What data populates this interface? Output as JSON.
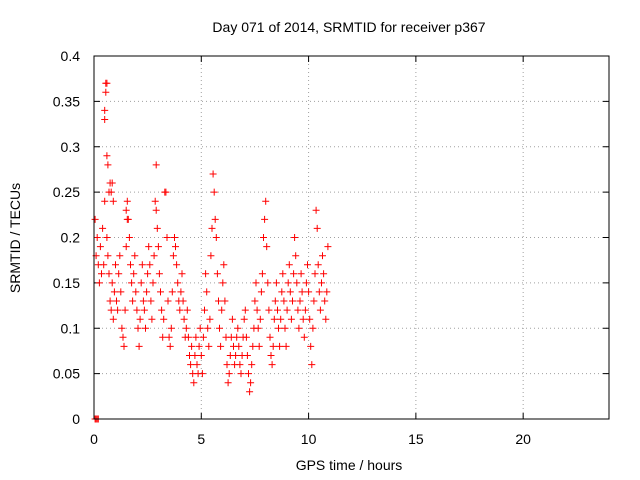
{
  "chart_data": {
    "type": "scatter",
    "title": "Day 071 of 2014, SRMTID for receiver p367",
    "xlabel": "GPS time / hours",
    "ylabel": "SRMTID / TECUs",
    "xlim": [
      0,
      24
    ],
    "ylim": [
      0,
      0.4
    ],
    "xticks": [
      0,
      5,
      10,
      15,
      20
    ],
    "yticks": [
      0,
      0.05,
      0.1,
      0.15,
      0.2,
      0.25,
      0.3,
      0.35,
      0.4
    ],
    "xtick_labels": [
      "0",
      "5",
      "10",
      "15",
      "20"
    ],
    "ytick_labels": [
      "0",
      "0.05",
      "0.1",
      "0.15",
      "0.2",
      "0.25",
      "0.3",
      "0.35",
      "0.4"
    ],
    "grid": true,
    "marker": "+",
    "color": "#ff0000",
    "series": [
      {
        "name": "SRMTID",
        "points": [
          [
            0.05,
            0.0
          ],
          [
            0.1,
            0.0
          ],
          [
            0.15,
            0.0
          ],
          [
            0.2,
            0.0
          ],
          [
            0.05,
            0.22
          ],
          [
            0.1,
            0.18
          ],
          [
            0.15,
            0.2
          ],
          [
            0.2,
            0.17
          ],
          [
            0.25,
            0.15
          ],
          [
            0.3,
            0.19
          ],
          [
            0.35,
            0.16
          ],
          [
            0.4,
            0.21
          ],
          [
            0.45,
            0.17
          ],
          [
            0.5,
            0.24
          ],
          [
            0.5,
            0.33
          ],
          [
            0.5,
            0.34
          ],
          [
            0.55,
            0.36
          ],
          [
            0.55,
            0.37
          ],
          [
            0.6,
            0.37
          ],
          [
            0.6,
            0.29
          ],
          [
            0.65,
            0.28
          ],
          [
            0.7,
            0.25
          ],
          [
            0.75,
            0.26
          ],
          [
            0.8,
            0.25
          ],
          [
            0.85,
            0.26
          ],
          [
            0.9,
            0.24
          ],
          [
            0.6,
            0.2
          ],
          [
            0.65,
            0.18
          ],
          [
            0.7,
            0.16
          ],
          [
            0.75,
            0.13
          ],
          [
            0.8,
            0.12
          ],
          [
            0.85,
            0.15
          ],
          [
            0.9,
            0.11
          ],
          [
            0.95,
            0.14
          ],
          [
            1.0,
            0.17
          ],
          [
            1.05,
            0.13
          ],
          [
            1.1,
            0.12
          ],
          [
            1.15,
            0.16
          ],
          [
            1.2,
            0.18
          ],
          [
            1.25,
            0.14
          ],
          [
            1.3,
            0.1
          ],
          [
            1.35,
            0.09
          ],
          [
            1.4,
            0.08
          ],
          [
            1.45,
            0.12
          ],
          [
            1.5,
            0.19
          ],
          [
            1.55,
            0.22
          ],
          [
            1.5,
            0.23
          ],
          [
            1.55,
            0.24
          ],
          [
            1.6,
            0.22
          ],
          [
            1.65,
            0.2
          ],
          [
            1.7,
            0.17
          ],
          [
            1.75,
            0.15
          ],
          [
            1.8,
            0.13
          ],
          [
            1.85,
            0.16
          ],
          [
            1.9,
            0.18
          ],
          [
            1.95,
            0.14
          ],
          [
            2.0,
            0.12
          ],
          [
            2.05,
            0.1
          ],
          [
            2.1,
            0.08
          ],
          [
            2.15,
            0.11
          ],
          [
            2.2,
            0.15
          ],
          [
            2.25,
            0.17
          ],
          [
            2.3,
            0.13
          ],
          [
            2.35,
            0.12
          ],
          [
            2.4,
            0.1
          ],
          [
            2.45,
            0.14
          ],
          [
            2.5,
            0.16
          ],
          [
            2.55,
            0.19
          ],
          [
            2.6,
            0.17
          ],
          [
            2.65,
            0.13
          ],
          [
            2.7,
            0.11
          ],
          [
            2.75,
            0.15
          ],
          [
            2.8,
            0.18
          ],
          [
            2.85,
            0.24
          ],
          [
            2.9,
            0.23
          ],
          [
            2.95,
            0.21
          ],
          [
            2.9,
            0.28
          ],
          [
            3.0,
            0.19
          ],
          [
            3.05,
            0.16
          ],
          [
            3.1,
            0.14
          ],
          [
            3.15,
            0.12
          ],
          [
            3.2,
            0.09
          ],
          [
            3.25,
            0.11
          ],
          [
            3.3,
            0.25
          ],
          [
            3.35,
            0.25
          ],
          [
            3.4,
            0.2
          ],
          [
            3.45,
            0.13
          ],
          [
            3.5,
            0.09
          ],
          [
            3.55,
            0.08
          ],
          [
            3.6,
            0.1
          ],
          [
            3.65,
            0.14
          ],
          [
            3.7,
            0.18
          ],
          [
            3.75,
            0.2
          ],
          [
            3.8,
            0.19
          ],
          [
            3.85,
            0.17
          ],
          [
            3.9,
            0.15
          ],
          [
            3.95,
            0.13
          ],
          [
            4.0,
            0.12
          ],
          [
            4.05,
            0.14
          ],
          [
            4.1,
            0.16
          ],
          [
            4.15,
            0.13
          ],
          [
            4.2,
            0.11
          ],
          [
            4.25,
            0.09
          ],
          [
            4.3,
            0.1
          ],
          [
            4.35,
            0.12
          ],
          [
            4.4,
            0.09
          ],
          [
            4.45,
            0.07
          ],
          [
            4.5,
            0.06
          ],
          [
            4.55,
            0.08
          ],
          [
            4.6,
            0.05
          ],
          [
            4.65,
            0.04
          ],
          [
            4.7,
            0.07
          ],
          [
            4.75,
            0.09
          ],
          [
            4.8,
            0.06
          ],
          [
            4.85,
            0.05
          ],
          [
            4.9,
            0.08
          ],
          [
            4.95,
            0.1
          ],
          [
            5.0,
            0.07
          ],
          [
            5.05,
            0.05
          ],
          [
            5.1,
            0.09
          ],
          [
            5.15,
            0.12
          ],
          [
            5.2,
            0.16
          ],
          [
            5.25,
            0.14
          ],
          [
            5.3,
            0.1
          ],
          [
            5.35,
            0.08
          ],
          [
            5.4,
            0.11
          ],
          [
            5.45,
            0.18
          ],
          [
            5.5,
            0.21
          ],
          [
            5.55,
            0.27
          ],
          [
            5.6,
            0.25
          ],
          [
            5.65,
            0.22
          ],
          [
            5.7,
            0.2
          ],
          [
            5.75,
            0.16
          ],
          [
            5.8,
            0.13
          ],
          [
            5.85,
            0.1
          ],
          [
            5.9,
            0.08
          ],
          [
            5.95,
            0.12
          ],
          [
            6.0,
            0.15
          ],
          [
            6.05,
            0.17
          ],
          [
            6.1,
            0.13
          ],
          [
            6.15,
            0.09
          ],
          [
            6.2,
            0.06
          ],
          [
            6.25,
            0.04
          ],
          [
            6.3,
            0.05
          ],
          [
            6.35,
            0.07
          ],
          [
            6.4,
            0.09
          ],
          [
            6.45,
            0.11
          ],
          [
            6.5,
            0.08
          ],
          [
            6.55,
            0.06
          ],
          [
            6.6,
            0.07
          ],
          [
            6.65,
            0.09
          ],
          [
            6.7,
            0.1
          ],
          [
            6.75,
            0.08
          ],
          [
            6.8,
            0.06
          ],
          [
            6.85,
            0.05
          ],
          [
            6.9,
            0.07
          ],
          [
            6.95,
            0.09
          ],
          [
            7.0,
            0.11
          ],
          [
            7.05,
            0.12
          ],
          [
            7.1,
            0.09
          ],
          [
            7.15,
            0.07
          ],
          [
            7.2,
            0.05
          ],
          [
            7.25,
            0.03
          ],
          [
            7.3,
            0.04
          ],
          [
            7.35,
            0.06
          ],
          [
            7.4,
            0.08
          ],
          [
            7.45,
            0.1
          ],
          [
            7.5,
            0.13
          ],
          [
            7.55,
            0.15
          ],
          [
            7.6,
            0.12
          ],
          [
            7.65,
            0.1
          ],
          [
            7.7,
            0.08
          ],
          [
            7.75,
            0.11
          ],
          [
            7.8,
            0.14
          ],
          [
            7.85,
            0.16
          ],
          [
            7.9,
            0.2
          ],
          [
            7.95,
            0.22
          ],
          [
            8.0,
            0.24
          ],
          [
            8.05,
            0.19
          ],
          [
            8.1,
            0.15
          ],
          [
            8.15,
            0.12
          ],
          [
            8.2,
            0.09
          ],
          [
            8.25,
            0.07
          ],
          [
            8.3,
            0.06
          ],
          [
            8.35,
            0.08
          ],
          [
            8.4,
            0.11
          ],
          [
            8.45,
            0.13
          ],
          [
            8.5,
            0.15
          ],
          [
            8.55,
            0.12
          ],
          [
            8.6,
            0.1
          ],
          [
            8.65,
            0.08
          ],
          [
            8.7,
            0.11
          ],
          [
            8.75,
            0.14
          ],
          [
            8.8,
            0.16
          ],
          [
            8.85,
            0.13
          ],
          [
            8.9,
            0.1
          ],
          [
            8.95,
            0.08
          ],
          [
            9.0,
            0.12
          ],
          [
            9.05,
            0.15
          ],
          [
            9.1,
            0.17
          ],
          [
            9.15,
            0.14
          ],
          [
            9.2,
            0.11
          ],
          [
            9.25,
            0.13
          ],
          [
            9.3,
            0.16
          ],
          [
            9.35,
            0.2
          ],
          [
            9.4,
            0.18
          ],
          [
            9.45,
            0.15
          ],
          [
            9.5,
            0.12
          ],
          [
            9.55,
            0.1
          ],
          [
            9.6,
            0.13
          ],
          [
            9.65,
            0.16
          ],
          [
            9.7,
            0.14
          ],
          [
            9.75,
            0.11
          ],
          [
            9.8,
            0.09
          ],
          [
            9.85,
            0.12
          ],
          [
            9.9,
            0.15
          ],
          [
            9.95,
            0.17
          ],
          [
            10.0,
            0.14
          ],
          [
            10.05,
            0.11
          ],
          [
            10.1,
            0.08
          ],
          [
            10.15,
            0.06
          ],
          [
            10.2,
            0.1
          ],
          [
            10.25,
            0.13
          ],
          [
            10.3,
            0.16
          ],
          [
            10.35,
            0.23
          ],
          [
            10.4,
            0.21
          ],
          [
            10.45,
            0.17
          ],
          [
            10.5,
            0.14
          ],
          [
            10.55,
            0.12
          ],
          [
            10.6,
            0.15
          ],
          [
            10.65,
            0.18
          ],
          [
            10.7,
            0.16
          ],
          [
            10.75,
            0.13
          ],
          [
            10.8,
            0.11
          ],
          [
            10.85,
            0.14
          ],
          [
            10.9,
            0.19
          ]
        ]
      }
    ]
  }
}
